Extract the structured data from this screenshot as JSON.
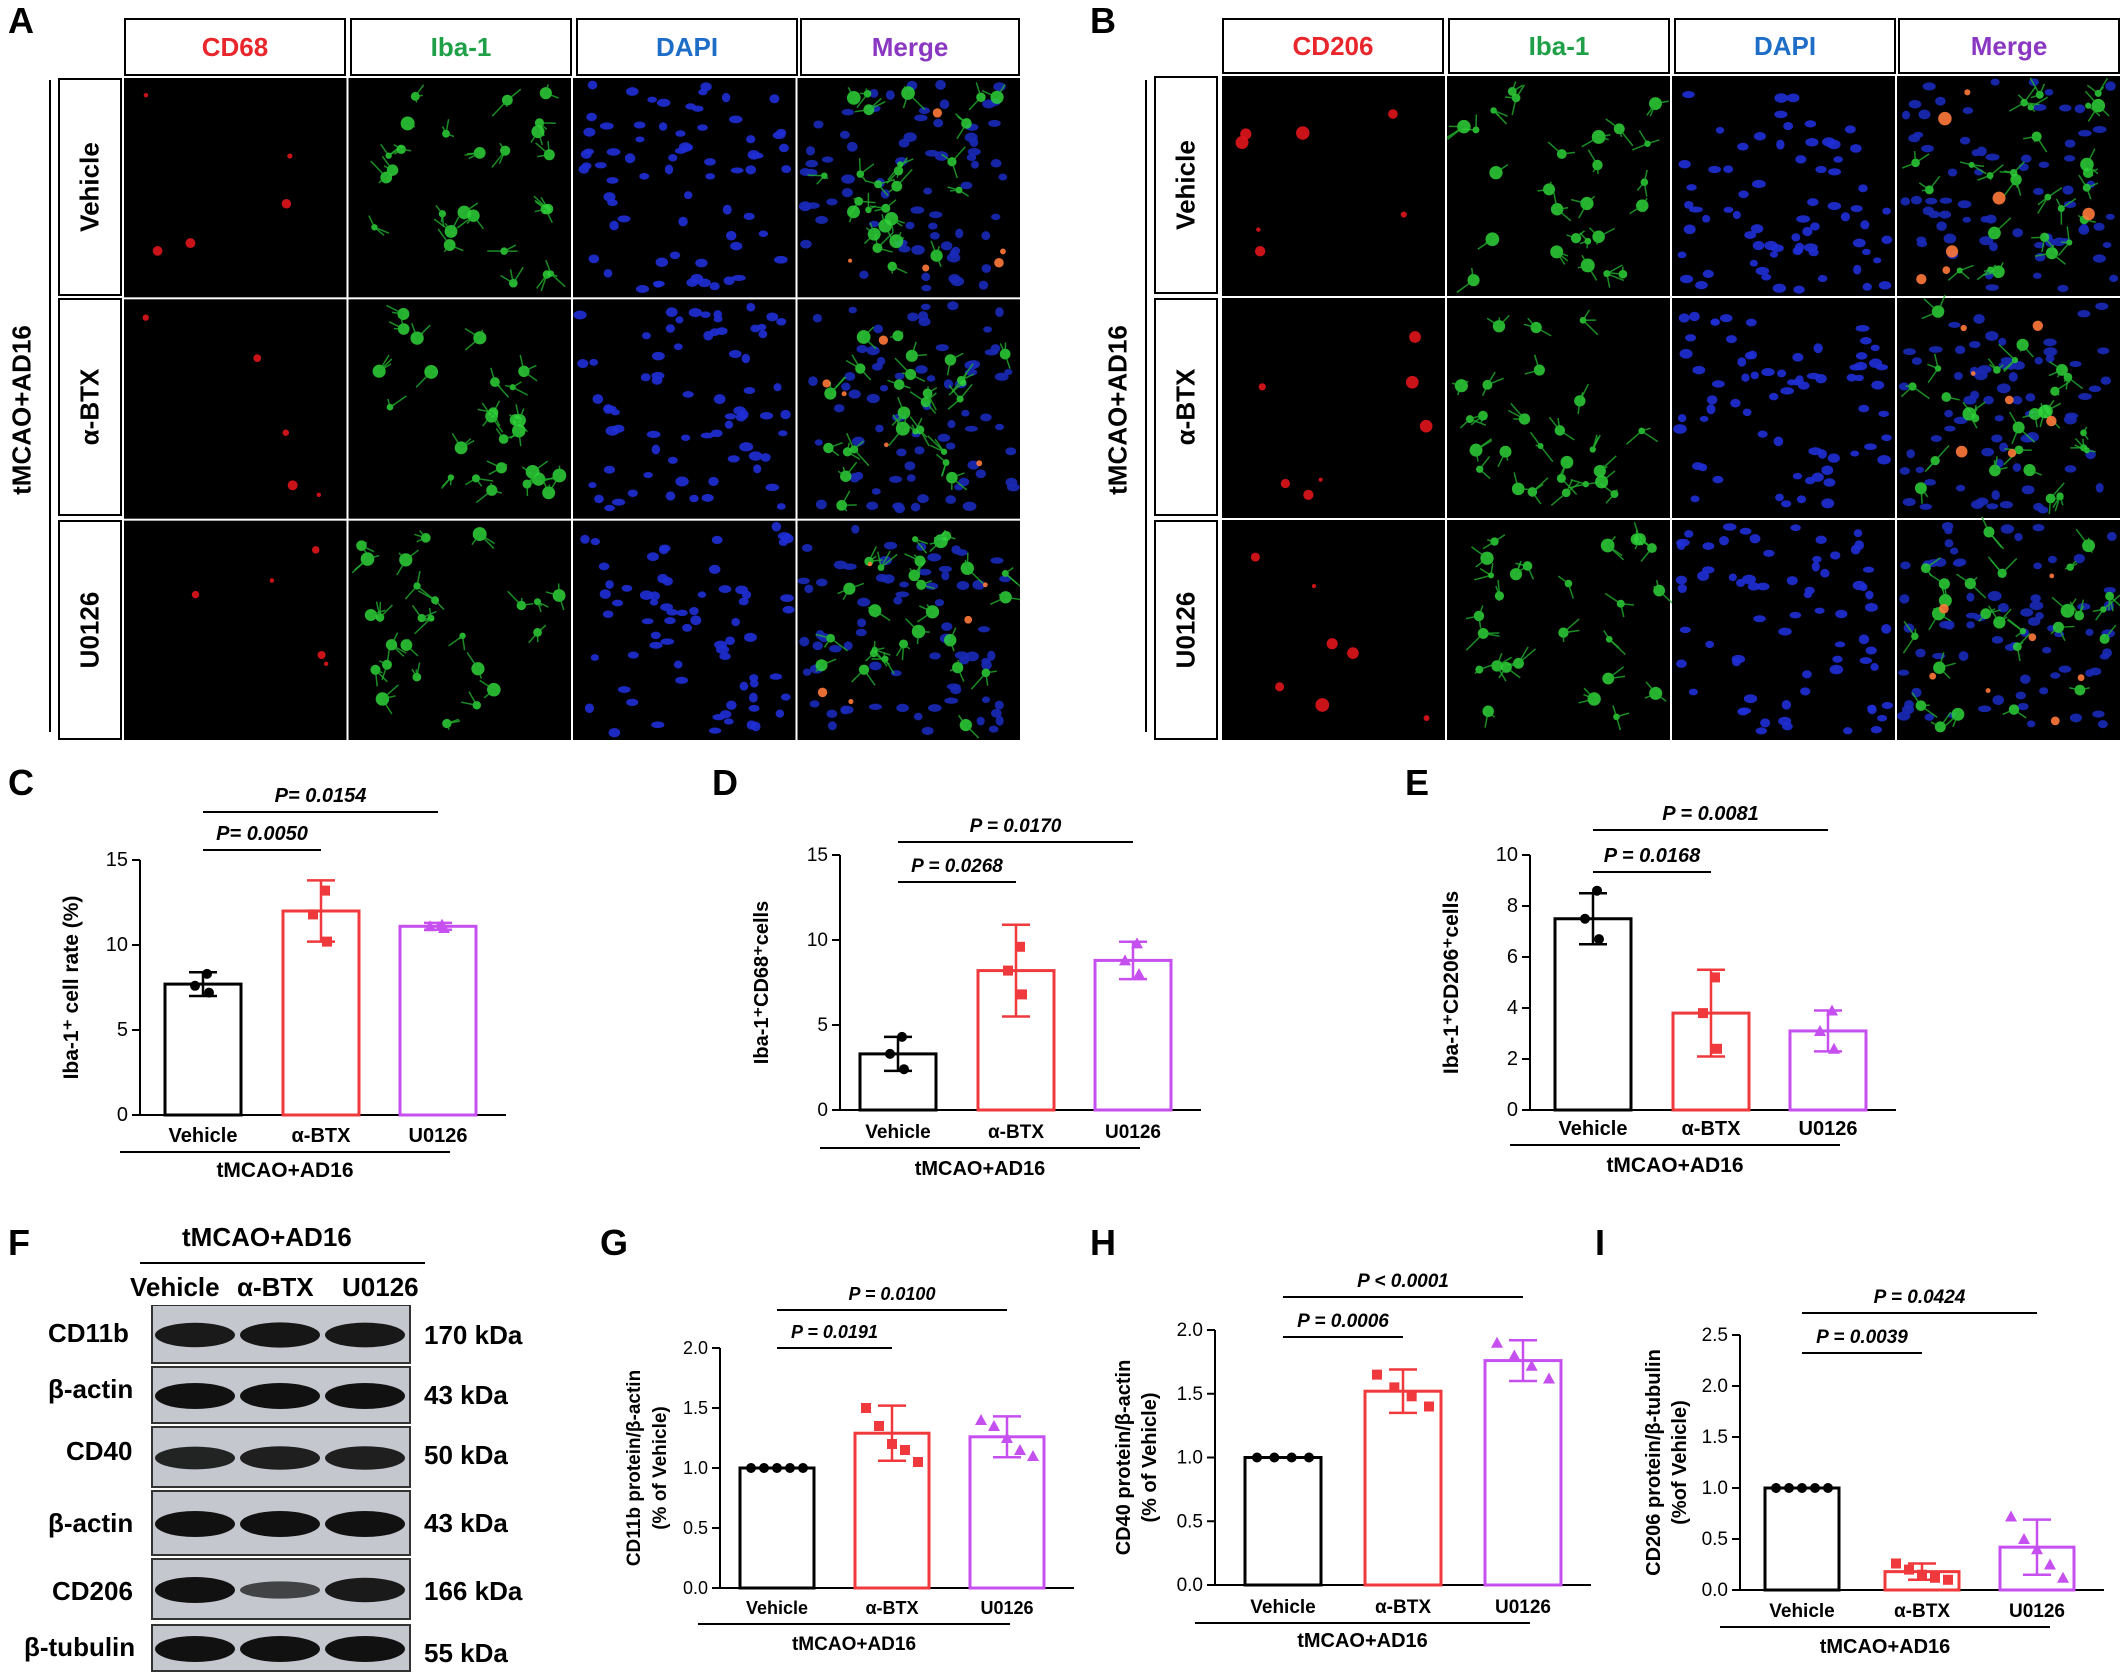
{
  "panel_letters": {
    "A": "A",
    "B": "B",
    "C": "C",
    "D": "D",
    "E": "E",
    "F": "F",
    "G": "G",
    "H": "H",
    "I": "I"
  },
  "colors": {
    "red": "#e8262b",
    "green": "#1fa048",
    "blue": "#1e6ec8",
    "purple": "#8a37c2",
    "vehicle": "#000000",
    "abtx": "#f0393c",
    "u0126": "#c64ff0"
  },
  "panel_a": {
    "headers": [
      "CD68",
      "Iba-1",
      "DAPI",
      "Merge"
    ],
    "rows": [
      "Vehicle",
      "α-BTX",
      "U0126"
    ],
    "group": "tMCAO+AD16"
  },
  "panel_b": {
    "headers": [
      "CD206",
      "Iba-1",
      "DAPI",
      "Merge"
    ],
    "rows": [
      "Vehicle",
      "α-BTX",
      "U0126"
    ],
    "group": "tMCAO+AD16"
  },
  "panel_f": {
    "group": "tMCAO+AD16",
    "lanes": [
      "Vehicle",
      "α-BTX",
      "U0126"
    ],
    "blots": [
      {
        "protein": "CD11b",
        "size": "170 kDa"
      },
      {
        "protein": "β-actin",
        "size": "43 kDa"
      },
      {
        "protein": "CD40",
        "size": "50 kDa"
      },
      {
        "protein": "β-actin",
        "size": "43 kDa"
      },
      {
        "protein": "CD206",
        "size": "166 kDa"
      },
      {
        "protein": "β-tubulin",
        "size": "55 kDa"
      }
    ]
  },
  "chart_data": [
    {
      "id": "C",
      "type": "bar",
      "categories": [
        "Vehicle",
        "α-BTX",
        "U0126"
      ],
      "group": "tMCAO+AD16",
      "ylabel": "Iba-1⁺ cell rate (%)",
      "ylim": [
        0,
        15
      ],
      "yticks": [
        0,
        5,
        10,
        15
      ],
      "values": [
        7.7,
        12.0,
        11.1
      ],
      "errors": [
        0.7,
        1.8,
        0.2
      ],
      "points": [
        [
          8.3,
          7.6,
          7.2
        ],
        [
          13.2,
          11.8,
          10.2
        ],
        [
          11.2,
          11.1,
          11.0
        ]
      ],
      "markers": [
        "circle",
        "square",
        "triangle"
      ],
      "pvalues": [
        {
          "from": 0,
          "to": 1,
          "text": "P= 0.0050"
        },
        {
          "from": 0,
          "to": 2,
          "text": "P= 0.0154"
        }
      ]
    },
    {
      "id": "D",
      "type": "bar",
      "categories": [
        "Vehicle",
        "α-BTX",
        "U0126"
      ],
      "group": "tMCAO+AD16",
      "ylabel": "Iba-1⁺CD68⁺cells",
      "ylim": [
        0,
        15
      ],
      "yticks": [
        0,
        5,
        10,
        15
      ],
      "values": [
        3.3,
        8.2,
        8.8
      ],
      "errors": [
        1.0,
        2.7,
        1.1
      ],
      "points": [
        [
          4.3,
          3.3,
          2.4
        ],
        [
          9.6,
          8.2,
          6.8
        ],
        [
          9.8,
          8.8,
          8.0
        ]
      ],
      "markers": [
        "circle",
        "square",
        "triangle"
      ],
      "pvalues": [
        {
          "from": 0,
          "to": 1,
          "text": "P = 0.0268"
        },
        {
          "from": 0,
          "to": 2,
          "text": "P = 0.0170"
        }
      ]
    },
    {
      "id": "E",
      "type": "bar",
      "categories": [
        "Vehicle",
        "α-BTX",
        "U0126"
      ],
      "group": "tMCAO+AD16",
      "ylabel": "Iba-1⁺CD206⁺cells",
      "ylim": [
        0,
        10
      ],
      "yticks": [
        0,
        2,
        4,
        6,
        8,
        10
      ],
      "values": [
        7.5,
        3.8,
        3.1
      ],
      "errors": [
        1.0,
        1.7,
        0.8
      ],
      "points": [
        [
          8.6,
          7.5,
          6.7
        ],
        [
          5.2,
          3.8,
          2.4
        ],
        [
          3.9,
          3.1,
          2.4
        ]
      ],
      "markers": [
        "circle",
        "square",
        "triangle"
      ],
      "pvalues": [
        {
          "from": 0,
          "to": 1,
          "text": "P = 0.0168"
        },
        {
          "from": 0,
          "to": 2,
          "text": "P = 0.0081"
        }
      ]
    },
    {
      "id": "G",
      "type": "bar",
      "categories": [
        "Vehicle",
        "α-BTX",
        "U0126"
      ],
      "group": "tMCAO+AD16",
      "ylabel": "CD11b protein/β-actin",
      "ylabel2": "(% of Vehicle)",
      "ylim": [
        0,
        2.0
      ],
      "yticks": [
        0,
        0.5,
        1.0,
        1.5,
        2.0
      ],
      "values": [
        1.0,
        1.29,
        1.26
      ],
      "errors": [
        0,
        0.23,
        0.17
      ],
      "points": [
        [
          1,
          1,
          1,
          1,
          1
        ],
        [
          1.5,
          1.35,
          1.2,
          1.15,
          1.05
        ],
        [
          1.4,
          1.35,
          1.25,
          1.15,
          1.1
        ]
      ],
      "markers": [
        "circle",
        "square",
        "triangle"
      ],
      "pvalues": [
        {
          "from": 0,
          "to": 1,
          "text": "P = 0.0191"
        },
        {
          "from": 0,
          "to": 2,
          "text": "P = 0.0100"
        }
      ]
    },
    {
      "id": "H",
      "type": "bar",
      "categories": [
        "Vehicle",
        "α-BTX",
        "U0126"
      ],
      "group": "tMCAO+AD16",
      "ylabel": "CD40 protein/β-actin",
      "ylabel2": "(% of Vehicle)",
      "ylim": [
        0,
        2.0
      ],
      "yticks": [
        0,
        0.5,
        1.0,
        1.5,
        2.0
      ],
      "values": [
        1.0,
        1.52,
        1.76
      ],
      "errors": [
        0,
        0.17,
        0.16
      ],
      "points": [
        [
          1,
          1,
          1,
          1
        ],
        [
          1.65,
          1.55,
          1.48,
          1.4
        ],
        [
          1.9,
          1.8,
          1.72,
          1.62
        ]
      ],
      "markers": [
        "circle",
        "square",
        "triangle"
      ],
      "pvalues": [
        {
          "from": 0,
          "to": 1,
          "text": "P = 0.0006"
        },
        {
          "from": 0,
          "to": 2,
          "text": "P < 0.0001"
        }
      ]
    },
    {
      "id": "I",
      "type": "bar",
      "categories": [
        "Vehicle",
        "α-BTX",
        "U0126"
      ],
      "group": "tMCAO+AD16",
      "ylabel": "CD206 protein/β-tubulin",
      "ylabel2": "(%of Vehicle)",
      "ylim": [
        0,
        2.5
      ],
      "yticks": [
        0,
        0.5,
        1.0,
        1.5,
        2.0,
        2.5
      ],
      "values": [
        1.0,
        0.18,
        0.42
      ],
      "errors": [
        0,
        0.08,
        0.27
      ],
      "points": [
        [
          1,
          1,
          1,
          1,
          1
        ],
        [
          0.26,
          0.2,
          0.15,
          0.12,
          0.1
        ],
        [
          0.72,
          0.5,
          0.4,
          0.25,
          0.12
        ]
      ],
      "markers": [
        "circle",
        "square",
        "triangle"
      ],
      "pvalues": [
        {
          "from": 0,
          "to": 1,
          "text": "P = 0.0039"
        },
        {
          "from": 0,
          "to": 2,
          "text": "P = 0.0424"
        }
      ]
    }
  ]
}
